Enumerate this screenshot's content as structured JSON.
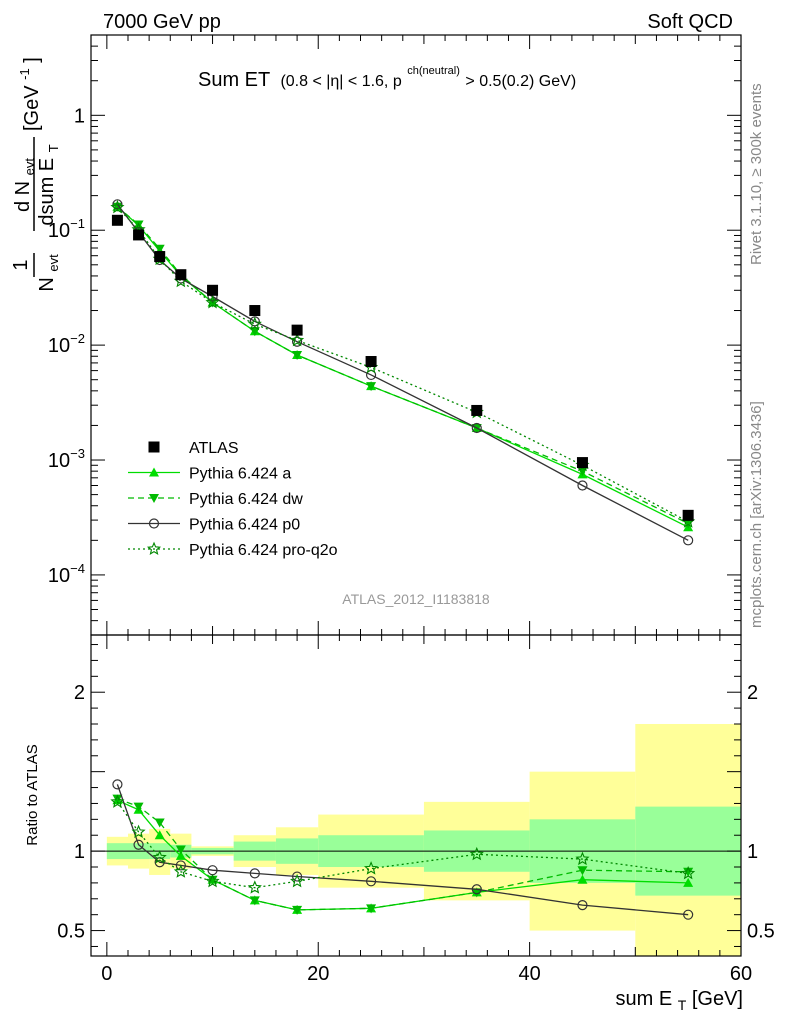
{
  "header": {
    "energy_label": "7000 GeV pp",
    "group_label": "Soft QCD"
  },
  "side_labels": {
    "rivet": "Rivet 3.1.10, ≥ 300k events",
    "mcplots": "mcplots.cern.ch [arXiv:1306.3436]"
  },
  "analysis_label": "ATLAS_2012_I1183818",
  "colors": {
    "atlas": "#000000",
    "pythia_a": "#00dd00",
    "pythia_dw": "#00bb00",
    "pythia_p0": "#333333",
    "pythia_pro_q2o": "#008800",
    "band_outer": "#ffff99",
    "band_inner": "#99ff99"
  },
  "chart_data": [
    {
      "type": "line",
      "panel": "main",
      "title": {
        "main": "Sum ET",
        "cut": "(0.8 < |η| < 1.6, p",
        "sup": "ch(neutral)",
        "tail": " > 0.5(0.2) GeV)"
      },
      "ylabel": {
        "num": "d N",
        "num_sub": "evt",
        "frac1": "1",
        "den1": "N",
        "den1_sub": "evt",
        "den2": "dsum E",
        "den2_sub": "T",
        "unit": "[GeV",
        "unit_sup": "-1",
        "unit_close": "]"
      },
      "yscale": "log",
      "ylim": [
        3e-05,
        5
      ],
      "xlim": [
        -1.5,
        60
      ],
      "yticks": [
        {
          "value": 0.0001,
          "base": "10",
          "exp": "−4"
        },
        {
          "value": 0.001,
          "base": "10",
          "exp": "−3"
        },
        {
          "value": 0.01,
          "base": "10",
          "exp": "−2"
        },
        {
          "value": 0.1,
          "base": "10",
          "exp": "−1"
        },
        {
          "value": 1,
          "base": "1",
          "exp": ""
        }
      ],
      "legend_position": "lower-left",
      "series": [
        {
          "name": "ATLAS",
          "key": "atlas",
          "marker": "square",
          "line": "none",
          "x": [
            1,
            3,
            5,
            7,
            10,
            14,
            18,
            25,
            35,
            45,
            55
          ],
          "y": [
            0.122,
            0.091,
            0.059,
            0.041,
            0.03,
            0.02,
            0.0135,
            0.0072,
            0.0027,
            0.00095,
            0.00033
          ]
        },
        {
          "name": "Pythia 6.424 a",
          "key": "pythia_a",
          "marker": "triangle-up",
          "line": "solid",
          "x": [
            1,
            3,
            5,
            7,
            10,
            14,
            18,
            25,
            35,
            45,
            55
          ],
          "y": [
            0.16,
            0.11,
            0.066,
            0.04,
            0.0235,
            0.0132,
            0.0082,
            0.0044,
            0.0019,
            0.00075,
            0.00026
          ]
        },
        {
          "name": "Pythia 6.424 dw",
          "key": "pythia_dw",
          "marker": "triangle-down",
          "line": "dashed",
          "x": [
            1,
            3,
            5,
            7,
            10,
            14,
            18,
            25,
            35,
            45,
            55
          ],
          "y": [
            0.16,
            0.112,
            0.069,
            0.041,
            0.0235,
            0.0132,
            0.0082,
            0.0044,
            0.0019,
            0.0008,
            0.00028
          ]
        },
        {
          "name": "Pythia 6.424 p0",
          "key": "pythia_p0",
          "marker": "circle-open",
          "line": "solid",
          "x": [
            1,
            3,
            5,
            7,
            10,
            14,
            18,
            25,
            35,
            45,
            55
          ],
          "y": [
            0.168,
            0.096,
            0.055,
            0.038,
            0.0265,
            0.0161,
            0.0107,
            0.0055,
            0.0019,
            0.0006,
            0.0002
          ]
        },
        {
          "name": "Pythia 6.424 pro-q2o",
          "key": "pythia_pro_q2o",
          "marker": "star-open",
          "line": "dotted",
          "x": [
            1,
            3,
            5,
            7,
            10,
            14,
            18,
            25,
            35,
            45,
            55
          ],
          "y": [
            0.158,
            0.101,
            0.056,
            0.036,
            0.0235,
            0.0152,
            0.011,
            0.0064,
            0.0026,
            0.0009,
            0.00029
          ]
        }
      ]
    },
    {
      "type": "line",
      "panel": "ratio",
      "ylabel": "Ratio to ATLAS",
      "xlabel": {
        "main": "sum E",
        "sub": "T",
        "unit": " [GeV]"
      },
      "xlim": [
        -1.5,
        60
      ],
      "ylim": [
        0.34,
        2.36
      ],
      "xticks": [
        0,
        20,
        40,
        60
      ],
      "yticks": [
        0.5,
        1,
        2
      ],
      "ytick_labels": [
        "0.5",
        "1",
        "2"
      ],
      "reference_line": 1,
      "bands": [
        {
          "x0": 0,
          "x1": 2,
          "outer": [
            0.91,
            1.09
          ],
          "inner": [
            0.95,
            1.05
          ]
        },
        {
          "x0": 2,
          "x1": 4,
          "outer": [
            0.89,
            1.11
          ],
          "inner": [
            0.95,
            1.05
          ]
        },
        {
          "x0": 4,
          "x1": 6,
          "outer": [
            0.85,
            1.14
          ],
          "inner": [
            0.95,
            1.05
          ]
        },
        {
          "x0": 6,
          "x1": 8,
          "outer": [
            0.89,
            1.11
          ],
          "inner": [
            0.96,
            1.04
          ]
        },
        {
          "x0": 8,
          "x1": 12,
          "outer": [
            0.97,
            1.03
          ],
          "inner": [
            0.98,
            1.02
          ]
        },
        {
          "x0": 12,
          "x1": 16,
          "outer": [
            0.9,
            1.1
          ],
          "inner": [
            0.94,
            1.06
          ]
        },
        {
          "x0": 16,
          "x1": 20,
          "outer": [
            0.85,
            1.15
          ],
          "inner": [
            0.92,
            1.08
          ]
        },
        {
          "x0": 20,
          "x1": 30,
          "outer": [
            0.77,
            1.23
          ],
          "inner": [
            0.9,
            1.1
          ]
        },
        {
          "x0": 30,
          "x1": 40,
          "outer": [
            0.69,
            1.31
          ],
          "inner": [
            0.87,
            1.13
          ]
        },
        {
          "x0": 40,
          "x1": 50,
          "outer": [
            0.5,
            1.5
          ],
          "inner": [
            0.8,
            1.2
          ]
        },
        {
          "x0": 50,
          "x1": 60,
          "outer": [
            0.2,
            1.8
          ],
          "inner": [
            0.72,
            1.28
          ]
        }
      ],
      "series": [
        {
          "name": "Pythia 6.424 a",
          "key": "pythia_a",
          "marker": "triangle-up",
          "line": "solid",
          "x": [
            1,
            3,
            5,
            7,
            10,
            14,
            18,
            25,
            35,
            45,
            55
          ],
          "y": [
            1.32,
            1.26,
            1.1,
            0.97,
            0.82,
            0.69,
            0.63,
            0.64,
            0.74,
            0.82,
            0.8
          ]
        },
        {
          "name": "Pythia 6.424 dw",
          "key": "pythia_dw",
          "marker": "triangle-down",
          "line": "dashed",
          "x": [
            1,
            3,
            5,
            7,
            10,
            14,
            18,
            25,
            35,
            45,
            55
          ],
          "y": [
            1.33,
            1.28,
            1.18,
            1.01,
            0.82,
            0.69,
            0.63,
            0.64,
            0.74,
            0.88,
            0.87
          ]
        },
        {
          "name": "Pythia 6.424 p0",
          "key": "pythia_p0",
          "marker": "circle-open",
          "line": "solid",
          "x": [
            1,
            3,
            5,
            7,
            10,
            14,
            18,
            25,
            35,
            45,
            55
          ],
          "y": [
            1.42,
            1.04,
            0.93,
            0.91,
            0.88,
            0.86,
            0.84,
            0.81,
            0.76,
            0.66,
            0.6
          ]
        },
        {
          "name": "Pythia 6.424 pro-q2o",
          "key": "pythia_pro_q2o",
          "marker": "star-open",
          "line": "dotted",
          "x": [
            1,
            3,
            5,
            7,
            10,
            14,
            18,
            25,
            35,
            45,
            55
          ],
          "y": [
            1.31,
            1.12,
            0.96,
            0.87,
            0.81,
            0.77,
            0.81,
            0.89,
            0.98,
            0.95,
            0.86
          ]
        }
      ]
    }
  ]
}
